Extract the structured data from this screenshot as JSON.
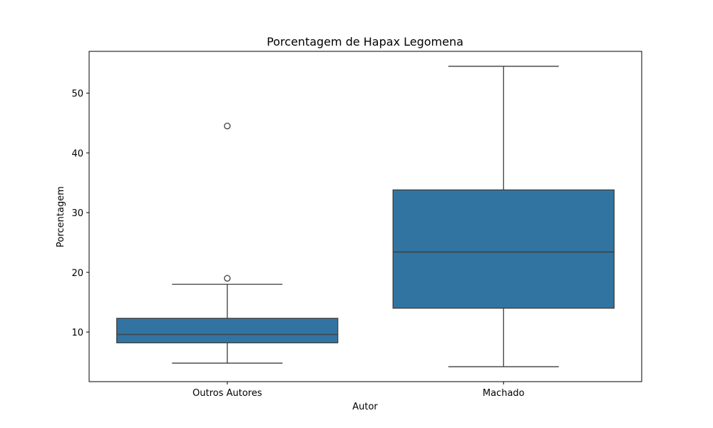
{
  "chart_data": {
    "type": "box",
    "title": "Porcentagem de Hapax Legomena",
    "xlabel": "Autor",
    "ylabel": "Porcentagem",
    "categories": [
      "Outros Autores",
      "Machado"
    ],
    "boxes": [
      {
        "category": "Outros Autores",
        "whisker_low": 4.8,
        "q1": 8.2,
        "median": 9.6,
        "q3": 12.3,
        "whisker_high": 18.0,
        "outliers": [
          19.0,
          44.5
        ]
      },
      {
        "category": "Machado",
        "whisker_low": 4.2,
        "q1": 14.0,
        "median": 23.4,
        "q3": 33.8,
        "whisker_high": 54.5,
        "outliers": []
      }
    ],
    "yticks": [
      10,
      20,
      30,
      40,
      50
    ],
    "ylim": [
      1.7,
      57.0
    ],
    "grid": false,
    "box_color": "#3274a1",
    "line_color": "#3d3d3d"
  }
}
